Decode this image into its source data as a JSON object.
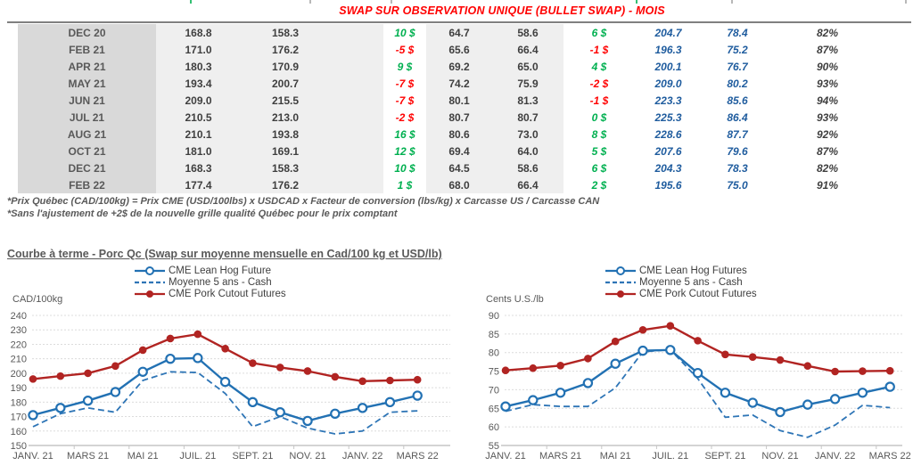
{
  "header": {
    "title": "SWAP SUR OBSERVATION UNIQUE (BULLET SWAP) - MOIS"
  },
  "table": {
    "rows": [
      {
        "label": "DEC 20",
        "v1": "168.8",
        "v2": "158.3",
        "g1": "10 $",
        "v3": "64.7",
        "v4": "58.6",
        "g2": "6 $",
        "b1": "204.7",
        "b2": "78.4",
        "pct": "82%"
      },
      {
        "label": "FEB 21",
        "v1": "171.0",
        "v2": "176.2",
        "g1": "-5 $",
        "v3": "65.6",
        "v4": "66.4",
        "g2": "-1 $",
        "b1": "196.3",
        "b2": "75.2",
        "pct": "87%"
      },
      {
        "label": "APR 21",
        "v1": "180.3",
        "v2": "170.9",
        "g1": "9 $",
        "v3": "69.2",
        "v4": "65.0",
        "g2": "4 $",
        "b1": "200.1",
        "b2": "76.7",
        "pct": "90%"
      },
      {
        "label": "MAY 21",
        "v1": "193.4",
        "v2": "200.7",
        "g1": "-7 $",
        "v3": "74.2",
        "v4": "75.9",
        "g2": "-2 $",
        "b1": "209.0",
        "b2": "80.2",
        "pct": "93%"
      },
      {
        "label": "JUN 21",
        "v1": "209.0",
        "v2": "215.5",
        "g1": "-7 $",
        "v3": "80.1",
        "v4": "81.3",
        "g2": "-1 $",
        "b1": "223.3",
        "b2": "85.6",
        "pct": "94%"
      },
      {
        "label": "JUL 21",
        "v1": "210.5",
        "v2": "213.0",
        "g1": "-2 $",
        "v3": "80.7",
        "v4": "80.7",
        "g2": "0 $",
        "b1": "225.3",
        "b2": "86.4",
        "pct": "93%"
      },
      {
        "label": "AUG 21",
        "v1": "210.1",
        "v2": "193.8",
        "g1": "16 $",
        "v3": "80.6",
        "v4": "73.0",
        "g2": "8 $",
        "b1": "228.6",
        "b2": "87.7",
        "pct": "92%"
      },
      {
        "label": "OCT 21",
        "v1": "181.0",
        "v2": "169.1",
        "g1": "12 $",
        "v3": "69.4",
        "v4": "64.0",
        "g2": "5 $",
        "b1": "207.6",
        "b2": "79.6",
        "pct": "87%"
      },
      {
        "label": "DEC 21",
        "v1": "168.3",
        "v2": "158.3",
        "g1": "10 $",
        "v3": "64.5",
        "v4": "58.6",
        "g2": "6 $",
        "b1": "204.3",
        "b2": "78.3",
        "pct": "82%"
      },
      {
        "label": "FEB 22",
        "v1": "177.4",
        "v2": "176.2",
        "g1": "1 $",
        "v3": "68.0",
        "v4": "66.4",
        "g2": "2 $",
        "b1": "195.6",
        "b2": "75.0",
        "pct": "91%"
      }
    ]
  },
  "footnotes": [
    "*Prix Québec (CAD/100kg) = Prix CME (USD/100lbs) x USDCAD x Facteur de conversion (lbs/kg) x Carcasse US / Carcasse CAN",
    "*Sans l'ajustement de +2$ de la nouvelle grille qualité Québec pour le prix comptant"
  ],
  "section_title": "Courbe à terme - Porc Qc (Swap sur moyenne mensuelle en Cad/100 kg et USD/lb)",
  "colors": {
    "title_red": "#FF0000",
    "gain_green": "#00B050",
    "gain_red": "#FF0000",
    "table_blue": "#1F5C9E",
    "line_blue": "#2271B3",
    "line_dashed_blue": "#2E75B6",
    "line_red": "#B12422",
    "gridline": "#DCDCDC",
    "axis": "#C6C6C6",
    "text_gray": "#595959"
  },
  "chart_data": [
    {
      "type": "line",
      "ylabel": "CAD/100kg",
      "ylim": [
        150,
        240
      ],
      "ytick_step": 10,
      "grid": true,
      "legend_position": "top",
      "x_labels": [
        "JANV. 21",
        "MARS 21",
        "MAI 21",
        "JUIL. 21",
        "SEPT. 21",
        "NOV. 21",
        "JANV. 22",
        "MARS 22"
      ],
      "series": [
        {
          "name": "CME Lean Hog Future",
          "style": "solid-open-circle",
          "color": "#2271B3",
          "values": [
            171,
            176,
            181,
            187,
            201,
            210,
            210.5,
            194,
            180,
            173,
            167,
            172,
            176,
            180,
            184.5
          ]
        },
        {
          "name": "Moyenne 5 ans - Cash",
          "style": "dashed",
          "color": "#2E75B6",
          "values": [
            163,
            172,
            176,
            173,
            195,
            201,
            200.5,
            186,
            163,
            170,
            162,
            158,
            160,
            173,
            174
          ]
        },
        {
          "name": "CME Pork Cutout Futures",
          "style": "solid-filled-circle",
          "color": "#B12422",
          "values": [
            196,
            198,
            200,
            205,
            216,
            224,
            227,
            217,
            207,
            204,
            201.5,
            197.5,
            194.5,
            195,
            195.5
          ]
        }
      ]
    },
    {
      "type": "line",
      "ylabel": "Cents U.S./lb",
      "ylim": [
        55,
        90
      ],
      "ytick_step": 5,
      "grid": true,
      "legend_position": "top",
      "x_labels": [
        "JANV. 21",
        "MARS 21",
        "MAI 21",
        "JUIL. 21",
        "SEPT. 21",
        "NOV. 21",
        "JANV. 22",
        "MARS 22"
      ],
      "series": [
        {
          "name": "CME Lean Hog Futures",
          "style": "solid-open-circle",
          "color": "#2271B3",
          "values": [
            65.5,
            67.2,
            69.2,
            71.8,
            77,
            80.5,
            80.7,
            74.5,
            69.2,
            66.5,
            64,
            66,
            67.5,
            69.2,
            70.8
          ]
        },
        {
          "name": "Moyenne 5 ans - Cash",
          "style": "dashed",
          "color": "#2E75B6",
          "values": [
            64.2,
            66,
            65.5,
            65.5,
            70.5,
            80.2,
            80.8,
            73,
            62.6,
            63.2,
            59,
            57.2,
            60.5,
            65.8,
            65.2
          ]
        },
        {
          "name": "CME Pork Cutout Futures",
          "style": "solid-filled-circle",
          "color": "#B12422",
          "values": [
            75.2,
            75.8,
            76.5,
            78.4,
            83,
            86.1,
            87.2,
            83.2,
            79.5,
            78.8,
            78,
            76.4,
            74.9,
            75,
            75.1
          ]
        }
      ]
    }
  ]
}
